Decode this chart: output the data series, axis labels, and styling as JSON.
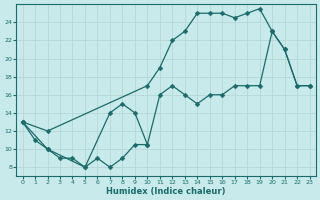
{
  "xlabel": "Humidex (Indice chaleur)",
  "bg_color": "#c8eaea",
  "grid_color": "#b8d8d8",
  "line_color": "#1a6b6b",
  "xlim": [
    -0.5,
    23.5
  ],
  "ylim": [
    7,
    26
  ],
  "xticks": [
    0,
    1,
    2,
    3,
    4,
    5,
    6,
    7,
    8,
    9,
    10,
    11,
    12,
    13,
    14,
    15,
    16,
    17,
    18,
    19,
    20,
    21,
    22,
    23
  ],
  "yticks": [
    8,
    10,
    12,
    14,
    16,
    18,
    20,
    22,
    24
  ],
  "curve1": {
    "x": [
      0,
      1,
      2,
      3,
      4,
      5,
      6,
      7,
      8,
      9,
      10
    ],
    "y": [
      13,
      11,
      10,
      9,
      9,
      8,
      9,
      8,
      9,
      10.5,
      10.5
    ]
  },
  "curve2": {
    "x": [
      0,
      2,
      5,
      7,
      8,
      9,
      10,
      11,
      12,
      13,
      14,
      15,
      16,
      17,
      18,
      19,
      20,
      21,
      22,
      23
    ],
    "y": [
      13,
      10,
      8,
      14,
      15,
      14,
      10.5,
      16,
      17,
      16,
      15,
      16,
      16,
      17,
      17,
      17,
      23,
      21,
      17,
      17
    ]
  },
  "curve3": {
    "x": [
      0,
      2,
      10,
      11,
      12,
      13,
      14,
      15,
      16,
      17,
      18,
      19,
      20,
      21,
      22,
      23
    ],
    "y": [
      13,
      12,
      17,
      19,
      22,
      23,
      25,
      25,
      25,
      24.5,
      25,
      25.5,
      23,
      21,
      17,
      17
    ]
  },
  "marker": "D",
  "markersize": 2.5,
  "linewidth": 0.9
}
